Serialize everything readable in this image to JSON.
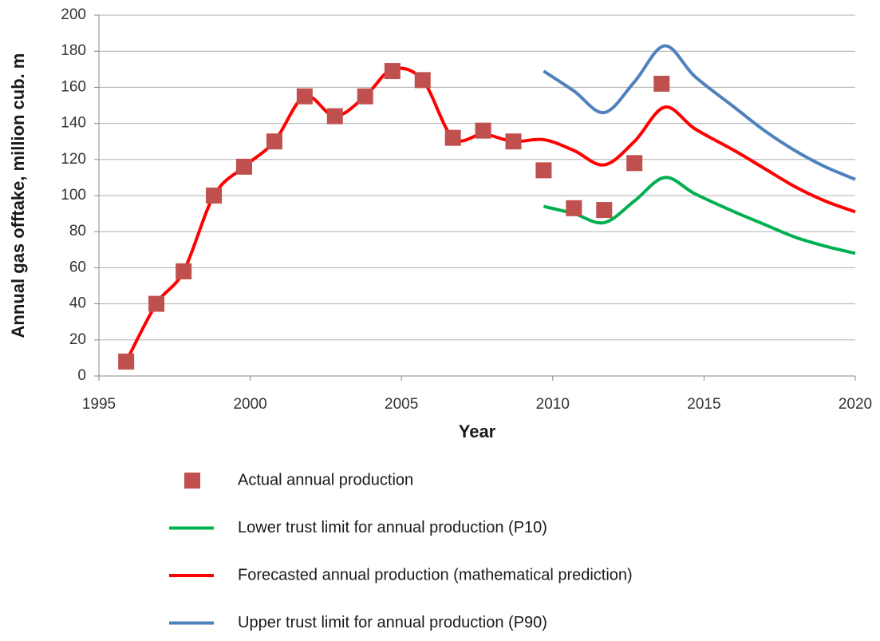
{
  "chart_data": {
    "type": "line",
    "x_label": "Year",
    "y_label": "Annual gas offtake, million cub. m",
    "xlim": [
      1995,
      2020
    ],
    "xticks": [
      1995,
      2000,
      2005,
      2010,
      2015,
      2020
    ],
    "ylim": [
      0,
      200
    ],
    "yticks": [
      0,
      20,
      40,
      60,
      80,
      100,
      120,
      140,
      160,
      180,
      200
    ],
    "grid": true,
    "legend": "bottom",
    "series": [
      {
        "name": "Actual annual production",
        "style": "markers",
        "marker": "square",
        "color": "#c0504d",
        "x": [
          1995.9,
          1996.9,
          1997.8,
          1998.8,
          1999.8,
          2000.8,
          2001.8,
          2002.8,
          2003.8,
          2004.7,
          2005.7,
          2006.7,
          2007.7,
          2008.7,
          2009.7,
          2010.7,
          2011.7,
          2012.7,
          2013.6
        ],
        "values": [
          8,
          40,
          58,
          100,
          116,
          130,
          155,
          144,
          155,
          169,
          164,
          132,
          136,
          130,
          114,
          93,
          92,
          118,
          162
        ]
      },
      {
        "name": "Lower trust limit for annual production (P10)",
        "style": "line",
        "color": "#00b050",
        "x": [
          2009.7,
          2010.7,
          2011.7,
          2012.7,
          2013.7,
          2014.7,
          2016,
          2017,
          2018,
          2019,
          2020
        ],
        "values": [
          94,
          90,
          85,
          97,
          110,
          101,
          91,
          84,
          77,
          72,
          68
        ]
      },
      {
        "name": "Forecasted annual production (mathematical prediction)",
        "style": "line",
        "color": "#ff0000",
        "x": [
          1995.9,
          1996.9,
          1997.8,
          1998.8,
          1999.8,
          2000.8,
          2001.8,
          2002.8,
          2003.8,
          2004.7,
          2005.7,
          2006.7,
          2007.7,
          2008.7,
          2009.7,
          2010.7,
          2011.7,
          2012.7,
          2013.7,
          2014.7,
          2016,
          2017,
          2018,
          2019,
          2020
        ],
        "values": [
          8,
          40,
          58,
          100,
          116,
          130,
          155,
          144,
          155,
          170,
          164,
          132,
          134,
          130,
          131,
          125,
          117,
          130,
          149,
          137,
          125,
          115,
          105,
          97,
          91
        ]
      },
      {
        "name": "Upper trust limit for annual production (P90)",
        "style": "line",
        "color": "#4f81bd",
        "x": [
          2009.7,
          2010.7,
          2011.7,
          2012.7,
          2013.7,
          2014.7,
          2016,
          2017,
          2018,
          2019,
          2020
        ],
        "values": [
          169,
          158,
          146,
          163,
          183,
          166,
          149,
          136,
          125,
          116,
          109
        ]
      }
    ]
  }
}
